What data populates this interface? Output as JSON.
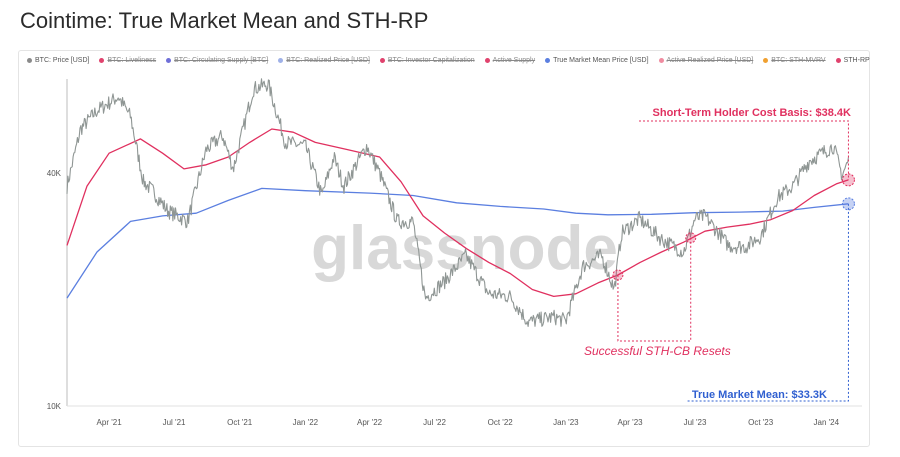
{
  "page": {
    "title": "Cointime: True Market Mean and STH-RP"
  },
  "legend": [
    {
      "label": "BTC: Price [USD]",
      "color": "#8a8a8a",
      "active": true
    },
    {
      "label": "BTC: Liveliness",
      "color": "#e0426d",
      "active": false
    },
    {
      "label": "BTC: Circulating Supply [BTC]",
      "color": "#6f6fd8",
      "active": false
    },
    {
      "label": "BTC: Realized Price [USD]",
      "color": "#9fb1e8",
      "active": false
    },
    {
      "label": "BTC: Investor Capitalization",
      "color": "#e0426d",
      "active": false
    },
    {
      "label": "Active Supply",
      "color": "#e0426d",
      "active": false
    },
    {
      "label": "True Market Mean Price [USD]",
      "color": "#5b7fe0",
      "active": true
    },
    {
      "label": "Active Realized Price [USD]",
      "color": "#f08ca0",
      "active": false
    },
    {
      "label": "BTC: STH-MVRV",
      "color": "#f0a030",
      "active": false
    },
    {
      "label": "STH-RP",
      "color": "#e0426d",
      "active": true
    }
  ],
  "watermark": "glassnode",
  "colors": {
    "price": "#8f9694",
    "tmm": "#5b7fe0",
    "sthrp": "#e0305f",
    "annot_red": "#e0305f",
    "annot_blue": "#2f5fd0"
  },
  "chart_data": {
    "type": "line",
    "title": "Cointime: True Market Mean and STH-RP",
    "y_scale": "log",
    "ylim": [
      10000,
      70000
    ],
    "y_ticks": [
      {
        "value": 10000,
        "label": "10K"
      },
      {
        "value": 40000,
        "label": "40K"
      }
    ],
    "x_ticks": [
      {
        "value": "2021-04-01",
        "label": "Apr '21"
      },
      {
        "value": "2021-07-01",
        "label": "Jul '21"
      },
      {
        "value": "2021-10-01",
        "label": "Oct '21"
      },
      {
        "value": "2022-01-01",
        "label": "Jan '22"
      },
      {
        "value": "2022-04-01",
        "label": "Apr '22"
      },
      {
        "value": "2022-07-01",
        "label": "Jul '22"
      },
      {
        "value": "2022-10-01",
        "label": "Oct '22"
      },
      {
        "value": "2023-01-01",
        "label": "Jan '23"
      },
      {
        "value": "2023-04-01",
        "label": "Apr '23"
      },
      {
        "value": "2023-07-01",
        "label": "Jul '23"
      },
      {
        "value": "2023-10-01",
        "label": "Oct '23"
      },
      {
        "value": "2024-01-01",
        "label": "Jan '24"
      }
    ],
    "xlim": [
      "2021-02-01",
      "2024-02-20"
    ],
    "series": [
      {
        "name": "BTC: Price [USD]",
        "key": "price",
        "points": [
          [
            "2021-02-01",
            37000
          ],
          [
            "2021-02-20",
            52000
          ],
          [
            "2021-03-15",
            58000
          ],
          [
            "2021-04-14",
            63000
          ],
          [
            "2021-05-01",
            56000
          ],
          [
            "2021-05-19",
            38000
          ],
          [
            "2021-06-01",
            36000
          ],
          [
            "2021-06-22",
            32000
          ],
          [
            "2021-07-20",
            30000
          ],
          [
            "2021-08-15",
            46000
          ],
          [
            "2021-09-07",
            50000
          ],
          [
            "2021-09-22",
            41000
          ],
          [
            "2021-10-20",
            66000
          ],
          [
            "2021-11-10",
            68000
          ],
          [
            "2021-12-04",
            48000
          ],
          [
            "2022-01-01",
            47000
          ],
          [
            "2022-01-24",
            35000
          ],
          [
            "2022-02-10",
            44000
          ],
          [
            "2022-02-24",
            37000
          ],
          [
            "2022-03-28",
            47000
          ],
          [
            "2022-04-15",
            40000
          ],
          [
            "2022-05-10",
            30000
          ],
          [
            "2022-06-01",
            30000
          ],
          [
            "2022-06-18",
            19000
          ],
          [
            "2022-07-15",
            21000
          ],
          [
            "2022-08-14",
            24500
          ],
          [
            "2022-09-15",
            19500
          ],
          [
            "2022-10-15",
            19200
          ],
          [
            "2022-11-09",
            16500
          ],
          [
            "2022-12-15",
            17000
          ],
          [
            "2023-01-01",
            16600
          ],
          [
            "2023-01-25",
            23000
          ],
          [
            "2023-02-20",
            24500
          ],
          [
            "2023-03-10",
            20000
          ],
          [
            "2023-03-20",
            28000
          ],
          [
            "2023-04-14",
            30500
          ],
          [
            "2023-05-15",
            27000
          ],
          [
            "2023-06-15",
            25000
          ],
          [
            "2023-07-01",
            30500
          ],
          [
            "2023-07-15",
            31000
          ],
          [
            "2023-08-17",
            26000
          ],
          [
            "2023-09-10",
            25800
          ],
          [
            "2023-10-01",
            27500
          ],
          [
            "2023-10-24",
            34500
          ],
          [
            "2023-11-15",
            37000
          ],
          [
            "2023-12-08",
            43000
          ],
          [
            "2024-01-11",
            47000
          ],
          [
            "2024-01-23",
            39500
          ],
          [
            "2024-02-01",
            43000
          ]
        ]
      },
      {
        "name": "True Market Mean Price [USD]",
        "key": "tmm",
        "points": [
          [
            "2021-02-01",
            19000
          ],
          [
            "2021-03-15",
            25000
          ],
          [
            "2021-05-01",
            30000
          ],
          [
            "2021-06-15",
            31000
          ],
          [
            "2021-08-01",
            31500
          ],
          [
            "2021-09-15",
            34000
          ],
          [
            "2021-11-01",
            36500
          ],
          [
            "2022-01-01",
            36000
          ],
          [
            "2022-04-01",
            35500
          ],
          [
            "2022-06-01",
            35000
          ],
          [
            "2022-08-01",
            33500
          ],
          [
            "2022-10-01",
            32800
          ],
          [
            "2022-12-01",
            32300
          ],
          [
            "2023-01-15",
            31500
          ],
          [
            "2023-03-01",
            31200
          ],
          [
            "2023-05-01",
            31300
          ],
          [
            "2023-07-01",
            31600
          ],
          [
            "2023-09-01",
            31700
          ],
          [
            "2023-11-01",
            31900
          ],
          [
            "2023-12-15",
            32600
          ],
          [
            "2024-02-01",
            33300
          ]
        ]
      },
      {
        "name": "STH-RP",
        "key": "sthrp",
        "points": [
          [
            "2021-02-01",
            26000
          ],
          [
            "2021-03-01",
            37000
          ],
          [
            "2021-04-01",
            45000
          ],
          [
            "2021-05-15",
            49000
          ],
          [
            "2021-06-15",
            45000
          ],
          [
            "2021-07-15",
            41000
          ],
          [
            "2021-08-15",
            42000
          ],
          [
            "2021-09-15",
            44000
          ],
          [
            "2021-10-15",
            48000
          ],
          [
            "2021-11-15",
            52000
          ],
          [
            "2021-12-15",
            51000
          ],
          [
            "2022-01-15",
            48000
          ],
          [
            "2022-03-01",
            46000
          ],
          [
            "2022-04-15",
            44000
          ],
          [
            "2022-05-15",
            38000
          ],
          [
            "2022-06-15",
            31000
          ],
          [
            "2022-07-15",
            28000
          ],
          [
            "2022-08-15",
            25500
          ],
          [
            "2022-09-15",
            23500
          ],
          [
            "2022-10-15",
            22000
          ],
          [
            "2022-11-15",
            20000
          ],
          [
            "2022-12-15",
            19200
          ],
          [
            "2023-01-15",
            19500
          ],
          [
            "2023-02-15",
            20800
          ],
          [
            "2023-03-15",
            21800
          ],
          [
            "2023-04-15",
            23500
          ],
          [
            "2023-05-15",
            25000
          ],
          [
            "2023-06-15",
            26500
          ],
          [
            "2023-07-15",
            28300
          ],
          [
            "2023-08-15",
            29000
          ],
          [
            "2023-09-15",
            29500
          ],
          [
            "2023-10-15",
            30300
          ],
          [
            "2023-11-15",
            32000
          ],
          [
            "2023-12-15",
            35000
          ],
          [
            "2024-01-15",
            37500
          ],
          [
            "2024-02-01",
            38400
          ]
        ]
      }
    ],
    "markers": [
      {
        "series": "sthrp",
        "x": "2023-03-15",
        "y": 21800
      },
      {
        "series": "sthrp",
        "x": "2023-06-25",
        "y": 27200
      },
      {
        "series": "sthrp",
        "x": "2024-02-01",
        "y": 38400
      },
      {
        "series": "tmm",
        "x": "2024-02-01",
        "y": 33300
      }
    ],
    "annotations": [
      {
        "key": "sth_cb",
        "text": "Short-Term Holder Cost Basis: $38.4K",
        "color": "#e0305f"
      },
      {
        "key": "resets",
        "text": "Successful STH-CB Resets",
        "color": "#e0305f"
      },
      {
        "key": "tmm_label",
        "text": "True Market Mean: $33.3K",
        "color": "#2f5fd0"
      }
    ]
  }
}
